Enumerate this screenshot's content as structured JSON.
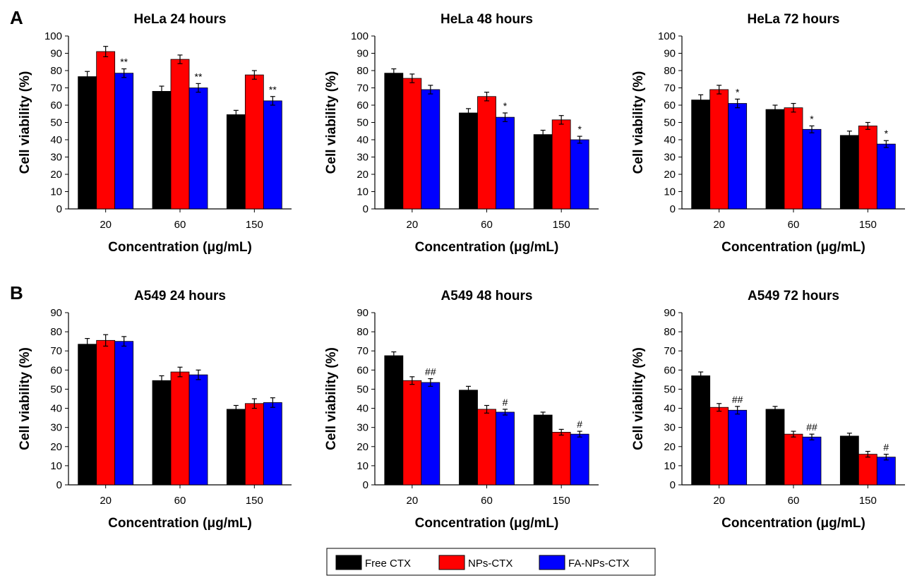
{
  "figure": {
    "panel_labels": [
      "A",
      "B"
    ]
  },
  "legend": {
    "items": [
      {
        "label": "Free CTX",
        "color": "#000000"
      },
      {
        "label": "NPs-CTX",
        "color": "#ff0000"
      },
      {
        "label": "FA-NPs-CTX",
        "color": "#0000ff"
      }
    ]
  },
  "chart_data": [
    {
      "type": "bar",
      "title": "HeLa 24 hours",
      "xlabel": "Concentration (μg/mL)",
      "ylabel": "Cell viability (%)",
      "categories": [
        "20",
        "60",
        "150"
      ],
      "ylim": [
        0,
        100
      ],
      "yticks": [
        0,
        10,
        20,
        30,
        40,
        50,
        60,
        70,
        80,
        90,
        100
      ],
      "series": [
        {
          "name": "Free CTX",
          "color": "#000000",
          "values": [
            76.5,
            68,
            54.5
          ],
          "errors": [
            3,
            3,
            2.5
          ],
          "annotations": [
            "",
            "",
            ""
          ]
        },
        {
          "name": "NPs-CTX",
          "color": "#ff0000",
          "values": [
            91,
            86.5,
            77.5
          ],
          "errors": [
            3,
            2.5,
            2.5
          ],
          "annotations": [
            "",
            "",
            ""
          ]
        },
        {
          "name": "FA-NPs-CTX",
          "color": "#0000ff",
          "values": [
            78.5,
            70,
            62.5
          ],
          "errors": [
            2.5,
            2.5,
            2.5
          ],
          "annotations": [
            "**",
            "**",
            "**"
          ]
        }
      ]
    },
    {
      "type": "bar",
      "title": "HeLa 48 hours",
      "xlabel": "Concentration (μg/mL)",
      "ylabel": "Cell viability (%)",
      "categories": [
        "20",
        "60",
        "150"
      ],
      "ylim": [
        0,
        100
      ],
      "yticks": [
        0,
        10,
        20,
        30,
        40,
        50,
        60,
        70,
        80,
        90,
        100
      ],
      "series": [
        {
          "name": "Free CTX",
          "color": "#000000",
          "values": [
            78.5,
            55.5,
            43
          ],
          "errors": [
            2.5,
            2.5,
            2.5
          ],
          "annotations": [
            "",
            "",
            ""
          ]
        },
        {
          "name": "NPs-CTX",
          "color": "#ff0000",
          "values": [
            75.5,
            65,
            51.5
          ],
          "errors": [
            2.5,
            2.5,
            2.5
          ],
          "annotations": [
            "",
            "",
            ""
          ]
        },
        {
          "name": "FA-NPs-CTX",
          "color": "#0000ff",
          "values": [
            69,
            53,
            40
          ],
          "errors": [
            2.5,
            2.5,
            2
          ],
          "annotations": [
            "",
            "*",
            "*"
          ]
        }
      ]
    },
    {
      "type": "bar",
      "title": "HeLa 72 hours",
      "xlabel": "Concentration (μg/mL)",
      "ylabel": "Cell viability (%)",
      "categories": [
        "20",
        "60",
        "150"
      ],
      "ylim": [
        0,
        100
      ],
      "yticks": [
        0,
        10,
        20,
        30,
        40,
        50,
        60,
        70,
        80,
        90,
        100
      ],
      "series": [
        {
          "name": "Free CTX",
          "color": "#000000",
          "values": [
            63,
            57.5,
            42.5
          ],
          "errors": [
            3,
            2.5,
            2.5
          ],
          "annotations": [
            "",
            "",
            ""
          ]
        },
        {
          "name": "NPs-CTX",
          "color": "#ff0000",
          "values": [
            69,
            58.5,
            48
          ],
          "errors": [
            2.5,
            2.5,
            2
          ],
          "annotations": [
            "",
            "",
            ""
          ]
        },
        {
          "name": "FA-NPs-CTX",
          "color": "#0000ff",
          "values": [
            61,
            46,
            37.5
          ],
          "errors": [
            2.5,
            2,
            2
          ],
          "annotations": [
            "*",
            "*",
            "*"
          ]
        }
      ]
    },
    {
      "type": "bar",
      "title": "A549 24 hours",
      "xlabel": "Concentration (μg/mL)",
      "ylabel": "Cell viability (%)",
      "categories": [
        "20",
        "60",
        "150"
      ],
      "ylim": [
        0,
        90
      ],
      "yticks": [
        0,
        10,
        20,
        30,
        40,
        50,
        60,
        70,
        80,
        90
      ],
      "series": [
        {
          "name": "Free CTX",
          "color": "#000000",
          "values": [
            73.5,
            54.5,
            39.5
          ],
          "errors": [
            3,
            2.5,
            2
          ],
          "annotations": [
            "",
            "",
            ""
          ]
        },
        {
          "name": "NPs-CTX",
          "color": "#ff0000",
          "values": [
            75.5,
            59,
            42.5
          ],
          "errors": [
            3,
            2.5,
            2.5
          ],
          "annotations": [
            "",
            "",
            ""
          ]
        },
        {
          "name": "FA-NPs-CTX",
          "color": "#0000ff",
          "values": [
            75,
            57.5,
            43
          ],
          "errors": [
            2.5,
            2.5,
            2.5
          ],
          "annotations": [
            "",
            "",
            ""
          ]
        }
      ]
    },
    {
      "type": "bar",
      "title": "A549 48 hours",
      "xlabel": "Concentration (μg/mL)",
      "ylabel": "Cell viability (%)",
      "categories": [
        "20",
        "60",
        "150"
      ],
      "ylim": [
        0,
        90
      ],
      "yticks": [
        0,
        10,
        20,
        30,
        40,
        50,
        60,
        70,
        80,
        90
      ],
      "series": [
        {
          "name": "Free CTX",
          "color": "#000000",
          "values": [
            67.5,
            49.5,
            36.5
          ],
          "errors": [
            2,
            2,
            1.5
          ],
          "annotations": [
            "",
            "",
            ""
          ]
        },
        {
          "name": "NPs-CTX",
          "color": "#ff0000",
          "values": [
            54.5,
            39.5,
            27.5
          ],
          "errors": [
            2,
            2,
            1.5
          ],
          "annotations": [
            "",
            "",
            ""
          ]
        },
        {
          "name": "FA-NPs-CTX",
          "color": "#0000ff",
          "values": [
            53.5,
            38,
            26.5
          ],
          "errors": [
            2,
            1.5,
            1.5
          ],
          "annotations": [
            "##",
            "#",
            "#"
          ]
        }
      ]
    },
    {
      "type": "bar",
      "title": "A549 72 hours",
      "xlabel": "Concentration (μg/mL)",
      "ylabel": "Cell viability (%)",
      "categories": [
        "20",
        "60",
        "150"
      ],
      "ylim": [
        0,
        90
      ],
      "yticks": [
        0,
        10,
        20,
        30,
        40,
        50,
        60,
        70,
        80,
        90
      ],
      "series": [
        {
          "name": "Free CTX",
          "color": "#000000",
          "values": [
            57,
            39.5,
            25.5
          ],
          "errors": [
            2,
            1.5,
            1.5
          ],
          "annotations": [
            "",
            "",
            ""
          ]
        },
        {
          "name": "NPs-CTX",
          "color": "#ff0000",
          "values": [
            40.5,
            26.5,
            16
          ],
          "errors": [
            2,
            1.5,
            1.5
          ],
          "annotations": [
            "",
            "",
            ""
          ]
        },
        {
          "name": "FA-NPs-CTX",
          "color": "#0000ff",
          "values": [
            39,
            25,
            14.5
          ],
          "errors": [
            2,
            1.5,
            1.5
          ],
          "annotations": [
            "##",
            "##",
            "#"
          ]
        }
      ]
    }
  ]
}
